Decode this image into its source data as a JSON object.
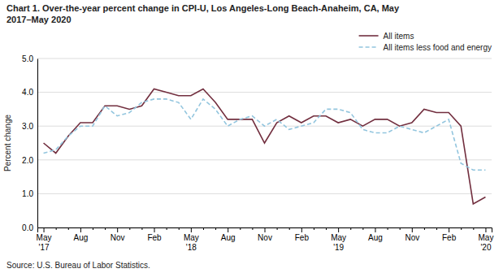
{
  "chart_data": {
    "type": "line",
    "title": "Chart 1. Over-the-year percent change in CPI-U, Los Angeles-Long Beach-Anaheim, CA, May\n2017–May  2020",
    "ylabel": "Percent change",
    "source": "Source: U.S. Bureau of Labor Statistics.",
    "categories": [
      "May\n'17",
      null,
      null,
      "Aug",
      null,
      null,
      "Nov",
      null,
      null,
      "Feb",
      null,
      null,
      "May\n'18",
      null,
      null,
      "Aug",
      null,
      null,
      "Nov",
      null,
      null,
      "Feb",
      null,
      null,
      "May\n'19",
      null,
      null,
      "Aug",
      null,
      null,
      "Nov",
      null,
      null,
      "Feb",
      null,
      null,
      "May\n'20"
    ],
    "series": [
      {
        "name": "All items",
        "color": "#722F3F",
        "line_style": "solid",
        "values": [
          2.5,
          2.2,
          2.7,
          3.1,
          3.1,
          3.6,
          3.6,
          3.5,
          3.6,
          4.1,
          4.0,
          3.9,
          3.9,
          4.1,
          3.7,
          3.2,
          3.2,
          3.2,
          2.5,
          3.1,
          3.3,
          3.1,
          3.3,
          3.3,
          3.1,
          3.2,
          3.0,
          3.2,
          3.2,
          3.0,
          3.1,
          3.5,
          3.4,
          3.4,
          3.0,
          0.7,
          0.9
        ]
      },
      {
        "name": "All items less food and energy",
        "color": "#92C5DE",
        "line_style": "dashed",
        "values": [
          2.2,
          2.3,
          2.7,
          3.0,
          3.0,
          3.6,
          3.3,
          3.4,
          3.7,
          3.8,
          3.8,
          3.7,
          3.2,
          3.8,
          3.5,
          3.0,
          3.2,
          3.3,
          3.0,
          3.2,
          2.9,
          3.0,
          3.1,
          3.5,
          3.5,
          3.4,
          2.9,
          2.8,
          2.8,
          3.0,
          2.9,
          2.8,
          3.0,
          3.2,
          1.9,
          1.7,
          1.7
        ]
      }
    ],
    "ylim": [
      0.0,
      5.0
    ],
    "yticks": [
      {
        "value": 0.0,
        "label": "0.0"
      },
      {
        "value": 1.0,
        "label": "1.0"
      },
      {
        "value": 2.0,
        "label": "2.0"
      },
      {
        "value": 3.0,
        "label": "3.0"
      },
      {
        "value": 4.0,
        "label": "4.0"
      },
      {
        "value": 5.0,
        "label": "5.0"
      }
    ],
    "grid": true,
    "legend": "upper right"
  }
}
